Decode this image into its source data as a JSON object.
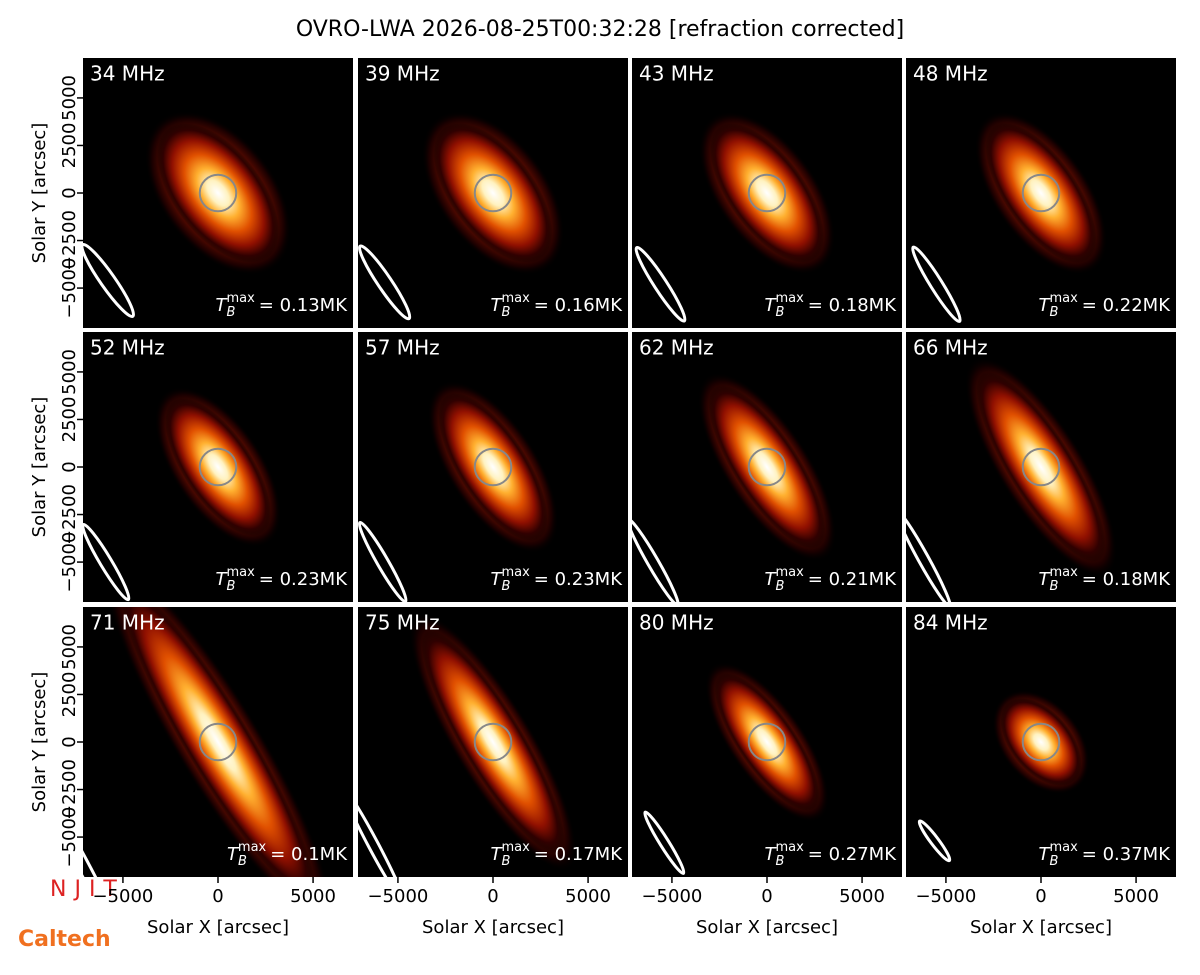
{
  "chart_data": {
    "type": "image-grid",
    "title": "OVRO-LWA 2026-08-25T00:32:28 [refraction corrected]",
    "xlabel": "Solar X [arcsec]",
    "ylabel": "Solar Y [arcsec]",
    "xlim": [
      -7100,
      7100
    ],
    "ylim": [
      -7100,
      7100
    ],
    "xticks": [
      {
        "value": -5000,
        "label": "−5000"
      },
      0,
      5000
    ],
    "yticks": [
      {
        "value": -5000,
        "label": "−5000"
      },
      {
        "value": -2500,
        "label": "−2500"
      },
      0,
      2500,
      5000
    ],
    "tb_symbol": "T",
    "tb_sub": "B",
    "tb_sup": "max",
    "panels": [
      {
        "label": "34 MHz",
        "tmax": "= 0.13MK"
      },
      {
        "label": "39 MHz",
        "tmax": "= 0.16MK"
      },
      {
        "label": "43 MHz",
        "tmax": "= 0.18MK"
      },
      {
        "label": "48 MHz",
        "tmax": "= 0.22MK"
      },
      {
        "label": "52 MHz",
        "tmax": "= 0.23MK"
      },
      {
        "label": "57 MHz",
        "tmax": "= 0.23MK"
      },
      {
        "label": "62 MHz",
        "tmax": "= 0.21MK"
      },
      {
        "label": "66 MHz",
        "tmax": "= 0.18MK"
      },
      {
        "label": "71 MHz",
        "tmax": "= 0.1MK"
      },
      {
        "label": "75 MHz",
        "tmax": "= 0.17MK"
      },
      {
        "label": "80 MHz",
        "tmax": "= 0.27MK"
      },
      {
        "label": "84 MHz",
        "tmax": "= 0.37MK"
      }
    ]
  },
  "logos": [
    "NJIT",
    "Caltech"
  ]
}
